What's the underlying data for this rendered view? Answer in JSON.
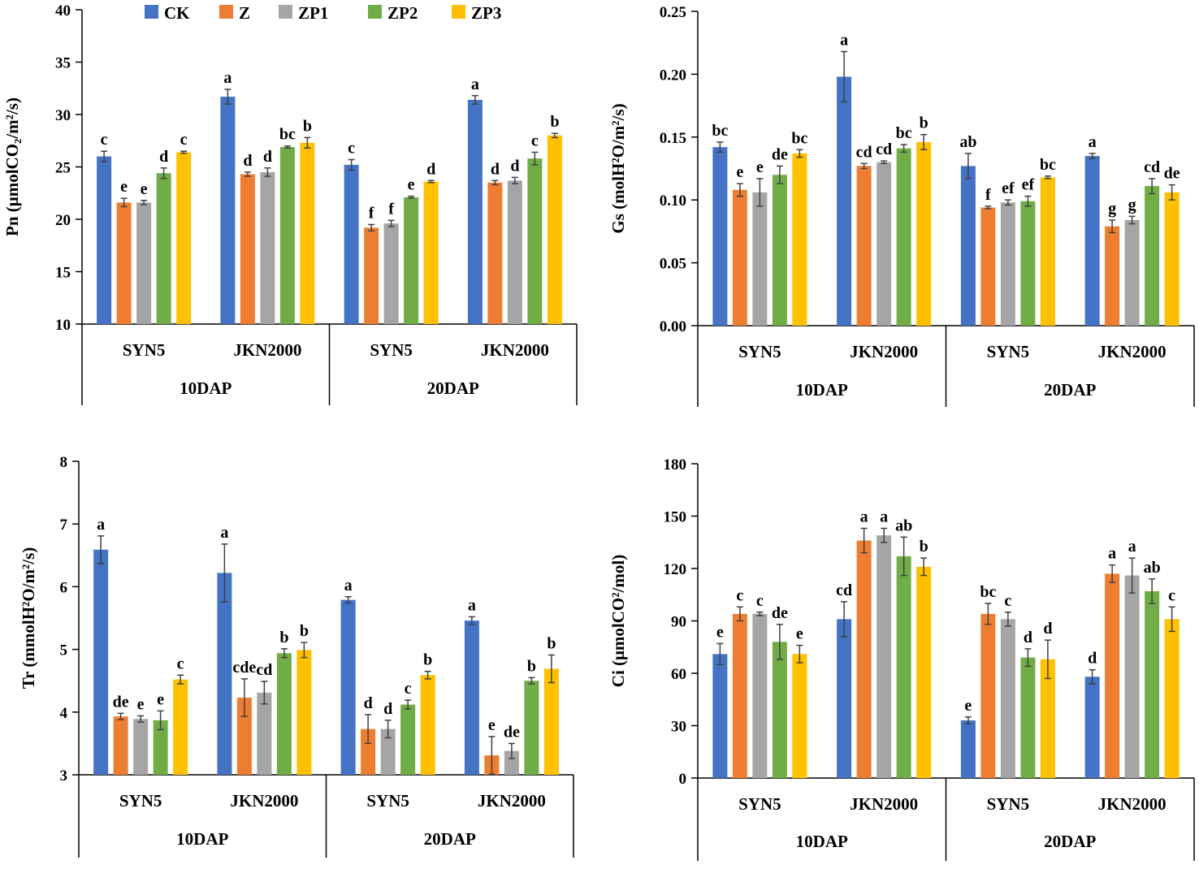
{
  "legend": [
    "CK",
    "Z",
    "ZP1",
    "ZP2",
    "ZP3"
  ],
  "colors": {
    "CK": "#4472c4",
    "Z": "#ed7d31",
    "ZP1": "#a5a5a5",
    "ZP2": "#70ad47",
    "ZP3": "#ffc000"
  },
  "chart_data": [
    {
      "id": "pn",
      "type": "bar",
      "ylabel": "Pn (μmolCO₂/m²/s)",
      "ylim": [
        10,
        40
      ],
      "yticks": [
        10,
        15,
        20,
        25,
        30,
        35,
        40
      ],
      "decimals": 0,
      "categories": [
        "SYN5",
        "JKN2000",
        "SYN5",
        "JKN2000"
      ],
      "groups": [
        "10DAP",
        "20DAP"
      ],
      "series": [
        {
          "name": "CK",
          "values": [
            26.0,
            31.7,
            25.2,
            31.4
          ],
          "errors": [
            0.5,
            0.7,
            0.5,
            0.4
          ],
          "labels": [
            "c",
            "a",
            "c",
            "a"
          ]
        },
        {
          "name": "Z",
          "values": [
            21.6,
            24.3,
            19.2,
            23.5
          ],
          "errors": [
            0.4,
            0.2,
            0.3,
            0.2
          ],
          "labels": [
            "e",
            "d",
            "f",
            "d"
          ]
        },
        {
          "name": "ZP1",
          "values": [
            21.6,
            24.5,
            19.6,
            23.7
          ],
          "errors": [
            0.2,
            0.4,
            0.3,
            0.3
          ],
          "labels": [
            "e",
            "d",
            "f",
            "d"
          ]
        },
        {
          "name": "ZP2",
          "values": [
            24.4,
            26.9,
            22.1,
            25.8
          ],
          "errors": [
            0.5,
            0.1,
            0.1,
            0.6
          ],
          "labels": [
            "d",
            "bc",
            "e",
            "c"
          ]
        },
        {
          "name": "ZP3",
          "values": [
            26.4,
            27.3,
            23.6,
            28.0
          ],
          "errors": [
            0.1,
            0.5,
            0.1,
            0.2
          ],
          "labels": [
            "c",
            "b",
            "d",
            "b"
          ]
        }
      ]
    },
    {
      "id": "gs",
      "type": "bar",
      "ylabel": "Gs (molH²O/m²/s)",
      "ylim": [
        0,
        0.25
      ],
      "yticks": [
        0,
        0.05,
        0.1,
        0.15,
        0.2,
        0.25
      ],
      "decimals": 2,
      "categories": [
        "SYN5",
        "JKN2000",
        "SYN5",
        "JKN2000"
      ],
      "groups": [
        "10DAP",
        "20DAP"
      ],
      "series": [
        {
          "name": "CK",
          "values": [
            0.142,
            0.198,
            0.127,
            0.135
          ],
          "errors": [
            0.004,
            0.02,
            0.01,
            0.002
          ],
          "labels": [
            "bc",
            "a",
            "ab",
            "a"
          ]
        },
        {
          "name": "Z",
          "values": [
            0.108,
            0.127,
            0.094,
            0.079
          ],
          "errors": [
            0.005,
            0.002,
            0.001,
            0.005
          ],
          "labels": [
            "e",
            "cd",
            "f",
            "g"
          ]
        },
        {
          "name": "ZP1",
          "values": [
            0.106,
            0.13,
            0.098,
            0.084
          ],
          "errors": [
            0.011,
            0.001,
            0.002,
            0.003
          ],
          "labels": [
            "e",
            "cd",
            "ef",
            "g"
          ]
        },
        {
          "name": "ZP2",
          "values": [
            0.12,
            0.141,
            0.099,
            0.111
          ],
          "errors": [
            0.007,
            0.003,
            0.004,
            0.006
          ],
          "labels": [
            "de",
            "bc",
            "ef",
            "cd"
          ]
        },
        {
          "name": "ZP3",
          "values": [
            0.137,
            0.146,
            0.118,
            0.106
          ],
          "errors": [
            0.003,
            0.006,
            0.001,
            0.006
          ],
          "labels": [
            "bc",
            "b",
            "bc",
            "de"
          ]
        }
      ]
    },
    {
      "id": "tr",
      "type": "bar",
      "ylabel": "Tr (mmolH²O/m²/s)",
      "ylim": [
        3,
        8
      ],
      "yticks": [
        3,
        4,
        5,
        6,
        7,
        8
      ],
      "decimals": 0,
      "categories": [
        "SYN5",
        "JKN2000",
        "SYN5",
        "JKN2000"
      ],
      "groups": [
        "10DAP",
        "20DAP"
      ],
      "series": [
        {
          "name": "CK",
          "values": [
            6.59,
            6.22,
            5.79,
            5.46
          ],
          "errors": [
            0.22,
            0.46,
            0.05,
            0.06
          ],
          "labels": [
            "a",
            "a",
            "a",
            "a"
          ]
        },
        {
          "name": "Z",
          "values": [
            3.93,
            4.23,
            3.73,
            3.31
          ],
          "errors": [
            0.05,
            0.3,
            0.23,
            0.3
          ],
          "labels": [
            "de",
            "cde",
            "d",
            "e"
          ]
        },
        {
          "name": "ZP1",
          "values": [
            3.89,
            4.31,
            3.73,
            3.38
          ],
          "errors": [
            0.05,
            0.18,
            0.14,
            0.12
          ],
          "labels": [
            "e",
            "cd",
            "d",
            "de"
          ]
        },
        {
          "name": "ZP2",
          "values": [
            3.87,
            4.94,
            4.12,
            4.5
          ],
          "errors": [
            0.15,
            0.07,
            0.07,
            0.05
          ],
          "labels": [
            "e",
            "b",
            "c",
            "b"
          ]
        },
        {
          "name": "ZP3",
          "values": [
            4.52,
            4.99,
            4.59,
            4.69
          ],
          "errors": [
            0.07,
            0.12,
            0.06,
            0.22
          ],
          "labels": [
            "c",
            "b",
            "b",
            "b"
          ]
        }
      ]
    },
    {
      "id": "ci",
      "type": "bar",
      "ylabel": "Ci (μmolCO²/mol)",
      "ylim": [
        0,
        180
      ],
      "yticks": [
        0,
        30,
        60,
        90,
        120,
        150,
        180
      ],
      "decimals": 0,
      "categories": [
        "SYN5",
        "JKN2000",
        "SYN5",
        "JKN2000"
      ],
      "groups": [
        "10DAP",
        "20DAP"
      ],
      "series": [
        {
          "name": "CK",
          "values": [
            71,
            91,
            33,
            58
          ],
          "errors": [
            6,
            10,
            2,
            4
          ],
          "labels": [
            "e",
            "cd",
            "e",
            "d"
          ]
        },
        {
          "name": "Z",
          "values": [
            94,
            136,
            94,
            117
          ],
          "errors": [
            4,
            7,
            6,
            5
          ],
          "labels": [
            "c",
            "a",
            "bc",
            "a"
          ]
        },
        {
          "name": "ZP1",
          "values": [
            94,
            139,
            91,
            116
          ],
          "errors": [
            1,
            4,
            4,
            10
          ],
          "labels": [
            "c",
            "a",
            "c",
            "a"
          ]
        },
        {
          "name": "ZP2",
          "values": [
            78,
            127,
            69,
            107
          ],
          "errors": [
            10,
            11,
            5,
            7
          ],
          "labels": [
            "de",
            "ab",
            "d",
            "ab"
          ]
        },
        {
          "name": "ZP3",
          "values": [
            71,
            121,
            68,
            91
          ],
          "errors": [
            5,
            5,
            11,
            7
          ],
          "labels": [
            "e",
            "b",
            "d",
            "c"
          ]
        }
      ]
    }
  ]
}
